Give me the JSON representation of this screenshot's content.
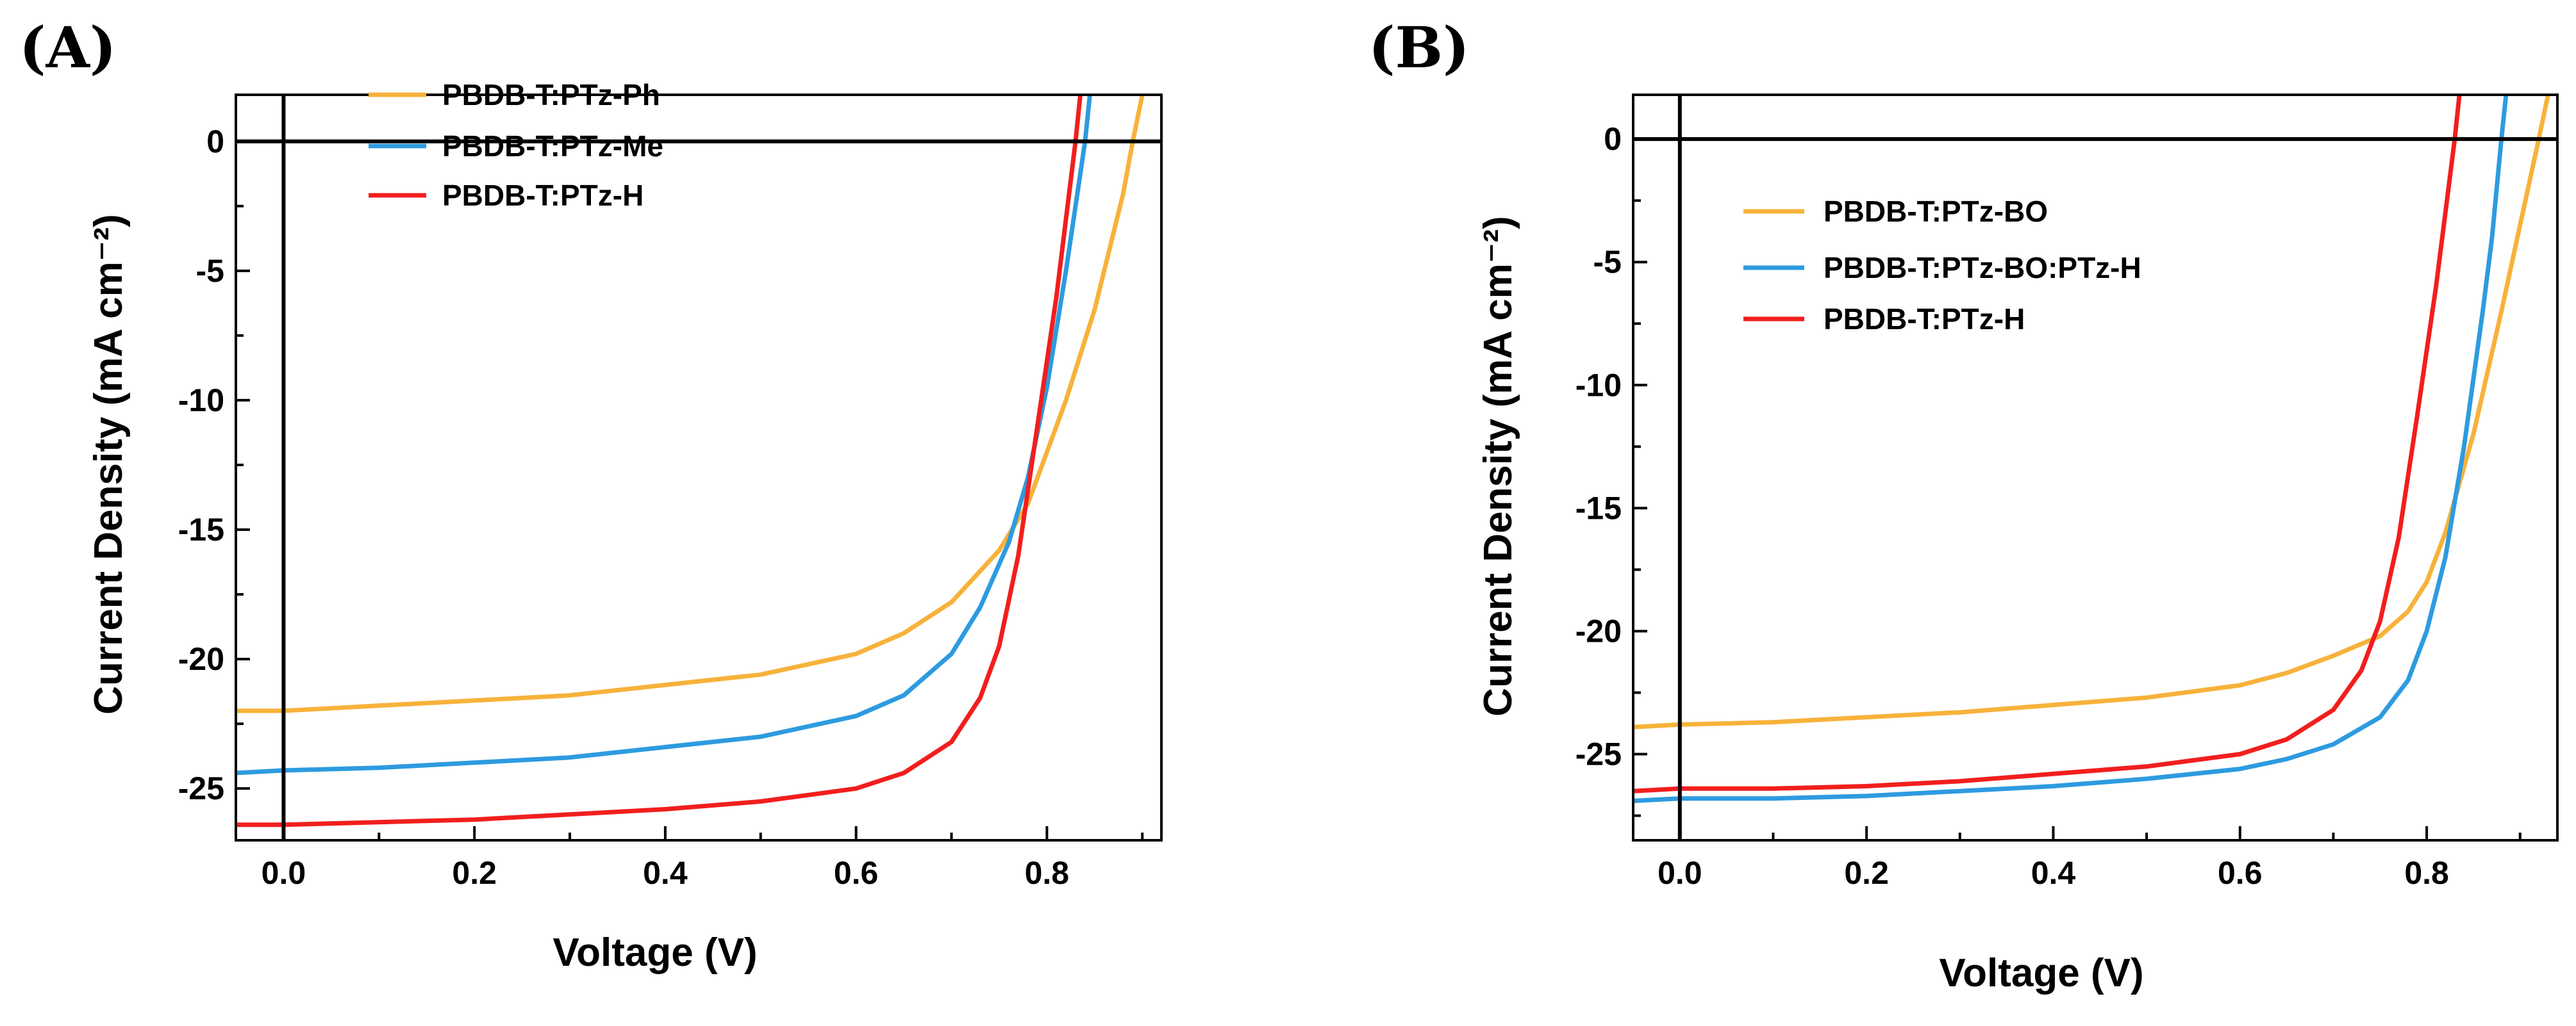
{
  "colors": {
    "orange": "#f7b23b",
    "blue": "#2d9be0",
    "red": "#f21e1e",
    "axis": "#000000"
  },
  "chart_data": [
    {
      "panel_label": "(A)",
      "type": "line",
      "xlabel": "Voltage (V)",
      "ylabel": "Current Density (mA cm⁻²)",
      "xlim": [
        -0.05,
        0.92
      ],
      "ylim": [
        -27,
        1.8
      ],
      "xticks": [
        0.0,
        0.2,
        0.4,
        0.6,
        0.8
      ],
      "xtick_labels": [
        "0.0",
        "0.2",
        "0.4",
        "0.6",
        "0.8"
      ],
      "yticks": [
        0,
        -5,
        -10,
        -15,
        -20,
        -25
      ],
      "ytick_labels": [
        "0",
        "-5",
        "-10",
        "-15",
        "-20",
        "-25"
      ],
      "legend_position": "top-left",
      "series": [
        {
          "name": "PBDB-T:PTz-Ph",
          "color": "#f7b23b",
          "x": [
            -0.05,
            0.0,
            0.1,
            0.2,
            0.3,
            0.4,
            0.5,
            0.6,
            0.65,
            0.7,
            0.75,
            0.78,
            0.8,
            0.82,
            0.85,
            0.87,
            0.88,
            0.89,
            0.9
          ],
          "y": [
            -22.0,
            -22.0,
            -21.8,
            -21.6,
            -21.4,
            -21.0,
            -20.6,
            -19.8,
            -19.0,
            -17.8,
            -15.8,
            -14.0,
            -12.0,
            -10.0,
            -6.5,
            -3.5,
            -2.0,
            0.0,
            1.8
          ]
        },
        {
          "name": "PBDB-T:PTz-Me",
          "color": "#2d9be0",
          "x": [
            -0.05,
            0.0,
            0.1,
            0.2,
            0.3,
            0.4,
            0.5,
            0.6,
            0.65,
            0.7,
            0.73,
            0.76,
            0.78,
            0.8,
            0.82,
            0.83,
            0.84,
            0.845
          ],
          "y": [
            -24.4,
            -24.3,
            -24.2,
            -24.0,
            -23.8,
            -23.4,
            -23.0,
            -22.2,
            -21.4,
            -19.8,
            -18.0,
            -15.5,
            -13.0,
            -9.5,
            -5.0,
            -2.5,
            0.0,
            1.8
          ]
        },
        {
          "name": "PBDB-T:PTz-H",
          "color": "#f21e1e",
          "x": [
            -0.05,
            0.0,
            0.1,
            0.2,
            0.3,
            0.4,
            0.5,
            0.6,
            0.65,
            0.7,
            0.73,
            0.75,
            0.77,
            0.79,
            0.81,
            0.82,
            0.83,
            0.835
          ],
          "y": [
            -26.4,
            -26.4,
            -26.3,
            -26.2,
            -26.0,
            -25.8,
            -25.5,
            -25.0,
            -24.4,
            -23.2,
            -21.5,
            -19.5,
            -16.0,
            -11.0,
            -6.0,
            -3.0,
            0.0,
            1.8
          ]
        }
      ]
    },
    {
      "panel_label": "(B)",
      "type": "line",
      "xlabel": "Voltage (V)",
      "ylabel": "Current Density (mA cm⁻²)",
      "xlim": [
        -0.05,
        0.94
      ],
      "ylim": [
        -28.5,
        1.8
      ],
      "xticks": [
        0.0,
        0.2,
        0.4,
        0.6,
        0.8
      ],
      "xtick_labels": [
        "0.0",
        "0.2",
        "0.4",
        "0.6",
        "0.8"
      ],
      "yticks": [
        0,
        -5,
        -10,
        -15,
        -20,
        -25
      ],
      "ytick_labels": [
        "0",
        "-5",
        "-10",
        "-15",
        "-20",
        "-25"
      ],
      "legend_position": "upper-left",
      "series": [
        {
          "name": "PBDB-T:PTz-BO",
          "color": "#f7b23b",
          "x": [
            -0.05,
            0.0,
            0.1,
            0.2,
            0.3,
            0.4,
            0.5,
            0.6,
            0.65,
            0.7,
            0.75,
            0.78,
            0.8,
            0.82,
            0.85,
            0.88,
            0.9,
            0.92,
            0.93
          ],
          "y": [
            -23.9,
            -23.8,
            -23.7,
            -23.5,
            -23.3,
            -23.0,
            -22.7,
            -22.2,
            -21.7,
            -21.0,
            -20.2,
            -19.2,
            -18.0,
            -16.0,
            -12.0,
            -7.0,
            -3.5,
            0.0,
            1.8
          ]
        },
        {
          "name": "PBDB-T:PTz-BO:PTz-H",
          "color": "#2d9be0",
          "x": [
            -0.05,
            0.0,
            0.1,
            0.2,
            0.3,
            0.4,
            0.5,
            0.6,
            0.65,
            0.7,
            0.75,
            0.78,
            0.8,
            0.82,
            0.84,
            0.86,
            0.87,
            0.88,
            0.885
          ],
          "y": [
            -26.9,
            -26.8,
            -26.8,
            -26.7,
            -26.5,
            -26.3,
            -26.0,
            -25.6,
            -25.2,
            -24.6,
            -23.5,
            -22.0,
            -20.0,
            -17.0,
            -12.5,
            -7.0,
            -4.0,
            0.0,
            1.8
          ]
        },
        {
          "name": "PBDB-T:PTz-H",
          "color": "#f21e1e",
          "x": [
            -0.05,
            0.0,
            0.1,
            0.2,
            0.3,
            0.4,
            0.5,
            0.6,
            0.65,
            0.7,
            0.73,
            0.75,
            0.77,
            0.79,
            0.81,
            0.82,
            0.83,
            0.835
          ],
          "y": [
            -26.5,
            -26.4,
            -26.4,
            -26.3,
            -26.1,
            -25.8,
            -25.5,
            -25.0,
            -24.4,
            -23.2,
            -21.6,
            -19.6,
            -16.2,
            -11.2,
            -6.0,
            -3.0,
            0.0,
            1.8
          ]
        }
      ]
    }
  ]
}
